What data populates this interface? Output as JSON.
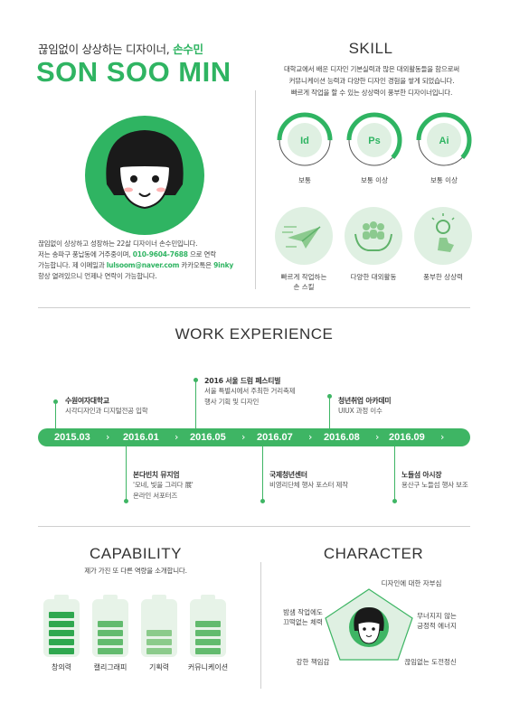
{
  "header": {
    "subtitle_prefix": "끊임없이 상상하는 디자이너,",
    "subtitle_name": "손수민",
    "name": "SON SOO MIN"
  },
  "intro": {
    "line1": "끊임없이 상상하고 성장하는 22살 디자이너 손수민입니다.",
    "line2_a": "저는 송파구 풍납동에 거주중이며,",
    "phone": "010-9604-7688",
    "line2_b": "으로 연락",
    "line3_a": "가능합니다. 제 이메일과",
    "email": "lulsoom@naver.com",
    "line3_b": "카카오톡은",
    "kakao": "9inky",
    "line4": "항상 열려있으니 언제나 연락이 가능합니다."
  },
  "skill": {
    "title": "SKILL",
    "desc1": "대학교에서 배운 디자인 기본실력과 많은 대외활동들을 함으로써",
    "desc2": "커뮤니케이션 능력과 다양한 디자인 경험을 쌓게 되었습니다.",
    "desc3": "빠르게 작업을 할 수 있는 상상력이 풍부한 디자이너입니다.",
    "tools": [
      {
        "name": "Id",
        "level": "보통",
        "fraction": 0.5
      },
      {
        "name": "Ps",
        "level": "보통 이상",
        "fraction": 0.62
      },
      {
        "name": "Ai",
        "level": "보통 이상",
        "fraction": 0.62
      }
    ],
    "traits": [
      {
        "icon": "paper-plane-icon",
        "label1": "빠르게 작업하는",
        "label2": "손 스킬"
      },
      {
        "icon": "people-hands-icon",
        "label1": "다양한 대외활동",
        "label2": ""
      },
      {
        "icon": "lightbulb-hand-icon",
        "label1": "풍부한 상상력",
        "label2": ""
      }
    ]
  },
  "work": {
    "title": "WORK EXPERIENCE",
    "dates": [
      "2015.03",
      "2016.01",
      "2016.05",
      "2016.07",
      "2016.08",
      "2016.09"
    ],
    "events": [
      {
        "title": "수원여자대학교",
        "desc1": "시각디자인과 디지털전공 입학",
        "desc2": ""
      },
      {
        "title": "본다빈치 뮤지엄",
        "desc1": "'모네, 빛을 그리다 展'",
        "desc2": "온라인 서포터즈"
      },
      {
        "title": "2016 서울 드럼 페스티벌",
        "desc1": "서울 특별시에서 주최한 거리축제",
        "desc2": "행사 기획 및 디자인"
      },
      {
        "title": "국제청년센터",
        "desc1": "비영리단체 행사 포스터 제작",
        "desc2": ""
      },
      {
        "title": "청년취업 아카데미",
        "desc1": "UIUX 과정 이수",
        "desc2": ""
      },
      {
        "title": "노들섬 아시장",
        "desc1": "용산구 노들섬 행사 보조",
        "desc2": ""
      }
    ]
  },
  "capability": {
    "title": "CAPABILITY",
    "desc": "제가 가진 또 다른 역량을 소개합니다.",
    "items": [
      {
        "label": "창의력",
        "filled": 5,
        "shade": "#2fa84f"
      },
      {
        "label": "캘리그래피",
        "filled": 4,
        "shade": "#62bb6e"
      },
      {
        "label": "기획력",
        "filled": 3,
        "shade": "#8bcb8b"
      },
      {
        "label": "커뮤니케이션",
        "filled": 4,
        "shade": "#62bb6e"
      }
    ]
  },
  "character": {
    "title": "CHARACTER",
    "traits": [
      {
        "l1": "디자인에 대한 자부심",
        "l2": ""
      },
      {
        "l1": "무너지지 않는",
        "l2": "긍정적 에너지"
      },
      {
        "l1": "끊임없는 도전정신",
        "l2": ""
      },
      {
        "l1": "강한 책임감",
        "l2": ""
      },
      {
        "l1": "밤샘 작업에도",
        "l2": "끄떡없는 체력"
      }
    ]
  },
  "colors": {
    "accent": "#2fb462",
    "light": "#dff0e2"
  }
}
